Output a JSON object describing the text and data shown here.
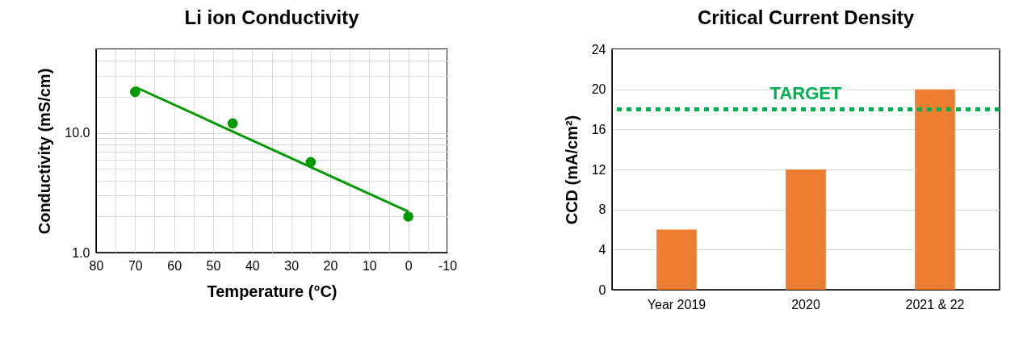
{
  "chart_data": [
    {
      "type": "scatter",
      "title": "Li ion Conductivity",
      "xlabel": "Temperature (°C)",
      "ylabel": "Conductivity (mS/cm)",
      "x": [
        70,
        45,
        25,
        0
      ],
      "log": "y",
      "grid": true,
      "series": [
        {
          "color": "#009900",
          "marker": "circle",
          "values": [
            22,
            12,
            5.7,
            2
          ]
        },
        {
          "type": "line",
          "color": "#009900",
          "x": [
            70,
            0
          ],
          "values": [
            24.2,
            2.2
          ]
        }
      ],
      "xlim": [
        80,
        -10
      ],
      "xticks": [
        80,
        {
          "value": 75,
          "label": null
        },
        70,
        {
          "value": 65,
          "label": null
        },
        60,
        {
          "value": 55,
          "label": null
        },
        50,
        {
          "value": 45,
          "label": null
        },
        40,
        {
          "value": 35,
          "label": null
        },
        30,
        {
          "value": 25,
          "label": null
        },
        20,
        {
          "value": 15,
          "label": null
        },
        10,
        {
          "value": 5,
          "label": null
        },
        0,
        {
          "value": -5,
          "label": null
        },
        -10
      ],
      "ylim": [
        1,
        50
      ],
      "yticks": [
        {
          "value": 1,
          "label": "1.0"
        },
        {
          "value": 2,
          "label": null
        },
        {
          "value": 3,
          "label": null
        },
        {
          "value": 4,
          "label": null
        },
        {
          "value": 5,
          "label": null
        },
        {
          "value": 6,
          "label": null
        },
        {
          "value": 7,
          "label": null
        },
        {
          "value": 8,
          "label": null
        },
        {
          "value": 9,
          "label": null
        },
        {
          "value": 10,
          "label": "10.0"
        },
        {
          "value": 20,
          "label": null
        },
        {
          "value": 30,
          "label": null
        },
        {
          "value": 40,
          "label": null
        },
        {
          "value": 50,
          "label": null
        }
      ]
    },
    {
      "type": "bar",
      "title": "Critical Current Density",
      "ylabel": "CCD (mA/cm²)",
      "categories": [
        "Year 2019",
        "2020",
        "2021 & 22"
      ],
      "values": [
        6,
        12,
        20
      ],
      "color": "#ed7d31",
      "ylim": [
        0,
        24
      ],
      "yticks": [
        0,
        4,
        8,
        12,
        16,
        20,
        24
      ],
      "grid": "y",
      "ref_lines": [
        {
          "axis": "y",
          "value": 18,
          "label": "TARGET",
          "color": "#00b050",
          "line_style": "dotted"
        }
      ]
    }
  ]
}
